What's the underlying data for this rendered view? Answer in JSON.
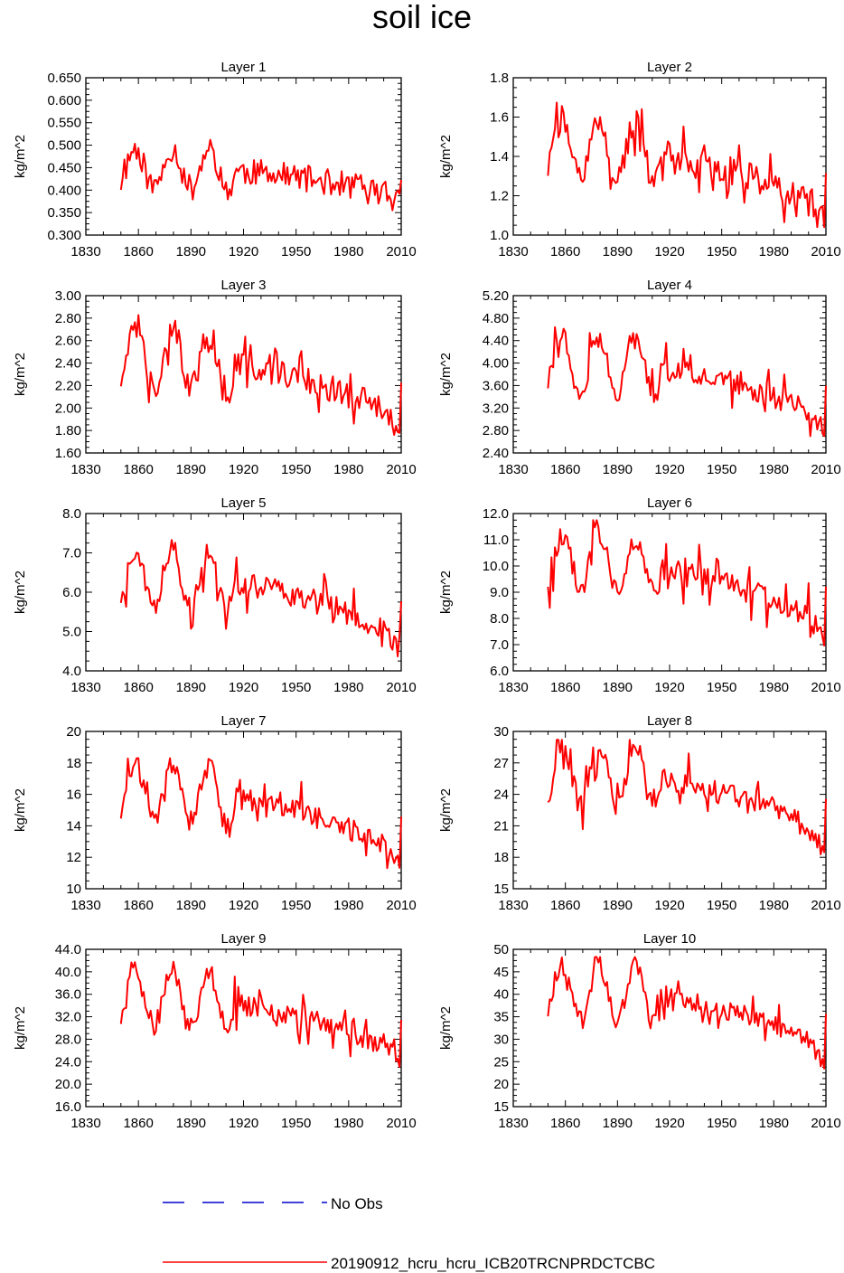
{
  "title": "soil ice",
  "colors": {
    "model": "#ff0000",
    "obs": "#0000cd",
    "axis": "#000000"
  },
  "legend": {
    "obs_label": "No Obs",
    "model_label": "20190912_hcru_hcru_ICB20TRCNPRDCTCBC"
  },
  "chart_data": [
    {
      "type": "line",
      "title": "Layer 1",
      "ylabel": "kg/m^2",
      "xlim": [
        1830,
        2010
      ],
      "xticks": [
        "1830",
        "1860",
        "1890",
        "1920",
        "1950",
        "1980",
        "2010"
      ],
      "ylim": [
        0.3,
        0.65
      ],
      "yticks": [
        "0.300",
        "0.350",
        "0.400",
        "0.450",
        "0.500",
        "0.550",
        "0.600",
        "0.650"
      ],
      "seed": 11,
      "base": 0.45,
      "trend": -0.03,
      "var": 0.048,
      "amp": 0.01,
      "noise": 0.03,
      "low": 0.34,
      "high": 0.625
    },
    {
      "type": "line",
      "title": "Layer 2",
      "ylabel": "kg/m^2",
      "xlim": [
        1830,
        2010
      ],
      "xticks": [
        "1830",
        "1860",
        "1890",
        "1920",
        "1950",
        "1980",
        "2010"
      ],
      "ylim": [
        1.0,
        1.8
      ],
      "yticks": [
        "1.0",
        "1.2",
        "1.4",
        "1.6",
        "1.8"
      ],
      "seed": 22,
      "base": 1.45,
      "trend": -0.15,
      "var": 0.16,
      "amp": 0.1,
      "noise": 0.07,
      "low": 1.04,
      "high": 1.72
    },
    {
      "type": "line",
      "title": "Layer 3",
      "ylabel": "kg/m^2",
      "xlim": [
        1830,
        2010
      ],
      "xticks": [
        "1830",
        "1860",
        "1890",
        "1920",
        "1950",
        "1980",
        "2010"
      ],
      "ylim": [
        1.6,
        3.0
      ],
      "yticks": [
        "1.60",
        "1.80",
        "2.00",
        "2.20",
        "2.40",
        "2.60",
        "2.80",
        "3.00"
      ],
      "seed": 33,
      "base": 2.45,
      "trend": -0.25,
      "var": 0.28,
      "amp": 0.2,
      "noise": 0.12,
      "low": 1.72,
      "high": 2.87
    },
    {
      "type": "line",
      "title": "Layer 4",
      "ylabel": "kg/m^2",
      "xlim": [
        1830,
        2010
      ],
      "xticks": [
        "1830",
        "1860",
        "1890",
        "1920",
        "1950",
        "1980",
        "2010"
      ],
      "ylim": [
        2.4,
        5.2
      ],
      "yticks": [
        "2.40",
        "2.80",
        "3.20",
        "3.60",
        "4.00",
        "4.40",
        "4.80",
        "5.20"
      ],
      "seed": 44,
      "base": 4.0,
      "trend": -0.45,
      "var": 0.5,
      "amp": 0.35,
      "noise": 0.2,
      "low": 2.7,
      "high": 4.82
    },
    {
      "type": "line",
      "title": "Layer 5",
      "ylabel": "kg/m^2",
      "xlim": [
        1830,
        2010
      ],
      "xticks": [
        "1830",
        "1860",
        "1890",
        "1920",
        "1950",
        "1980",
        "2010"
      ],
      "ylim": [
        4.0,
        8.0
      ],
      "yticks": [
        "4.0",
        "5.0",
        "6.0",
        "7.0",
        "8.0"
      ],
      "seed": 55,
      "base": 6.4,
      "trend": -0.7,
      "var": 0.75,
      "amp": 0.5,
      "noise": 0.3,
      "low": 4.2,
      "high": 7.6
    },
    {
      "type": "line",
      "title": "Layer 6",
      "ylabel": "kg/m^2",
      "xlim": [
        1830,
        2010
      ],
      "xticks": [
        "1830",
        "1860",
        "1890",
        "1920",
        "1950",
        "1980",
        "2010"
      ],
      "ylim": [
        6.0,
        12.0
      ],
      "yticks": [
        "6.0",
        "7.0",
        "8.0",
        "9.0",
        "10.0",
        "11.0",
        "12.0"
      ],
      "seed": 66,
      "base": 10.2,
      "trend": -1.1,
      "var": 1.1,
      "amp": 0.8,
      "noise": 0.45,
      "low": 6.75,
      "high": 11.75
    },
    {
      "type": "line",
      "title": "Layer 7",
      "ylabel": "kg/m^2",
      "xlim": [
        1830,
        2010
      ],
      "xticks": [
        "1830",
        "1860",
        "1890",
        "1920",
        "1950",
        "1980",
        "2010"
      ],
      "ylim": [
        10,
        20
      ],
      "yticks": [
        "10",
        "12",
        "14",
        "16",
        "18",
        "20"
      ],
      "seed": 77,
      "base": 16.2,
      "trend": -1.8,
      "var": 2.0,
      "amp": 1.3,
      "noise": 0.7,
      "low": 10.5,
      "high": 18.3
    },
    {
      "type": "line",
      "title": "Layer 8",
      "ylabel": "kg/m^2",
      "xlim": [
        1830,
        2010
      ],
      "xticks": [
        "1830",
        "1860",
        "1890",
        "1920",
        "1950",
        "1980",
        "2010"
      ],
      "ylim": [
        15,
        30
      ],
      "yticks": [
        "15",
        "18",
        "21",
        "24",
        "27",
        "30"
      ],
      "seed": 88,
      "base": 26.0,
      "trend": -2.7,
      "var": 3.2,
      "amp": 2.0,
      "noise": 1.1,
      "low": 15.0,
      "high": 29.2
    },
    {
      "type": "line",
      "title": "Layer 9",
      "ylabel": "kg/m^2",
      "xlim": [
        1830,
        2010
      ],
      "xticks": [
        "1830",
        "1860",
        "1890",
        "1920",
        "1950",
        "1980",
        "2010"
      ],
      "ylim": [
        16,
        44
      ],
      "yticks": [
        "16.0",
        "20.0",
        "24.0",
        "28.0",
        "32.0",
        "36.0",
        "40.0",
        "44.0"
      ],
      "seed": 99,
      "base": 35.5,
      "trend": -4.5,
      "var": 5.5,
      "amp": 3.0,
      "noise": 2.0,
      "low": 18.8,
      "high": 43.5
    },
    {
      "type": "line",
      "title": "Layer 10",
      "ylabel": "kg/m^2",
      "xlim": [
        1830,
        2010
      ],
      "xticks": [
        "1830",
        "1860",
        "1890",
        "1920",
        "1950",
        "1980",
        "2010"
      ],
      "ylim": [
        15,
        50
      ],
      "yticks": [
        "15",
        "20",
        "25",
        "30",
        "35",
        "40",
        "45",
        "50"
      ],
      "seed": 111,
      "base": 41.0,
      "trend": -6.0,
      "var": 7.0,
      "amp": 3.0,
      "noise": 2.2,
      "low": 17.8,
      "high": 48.3
    }
  ]
}
